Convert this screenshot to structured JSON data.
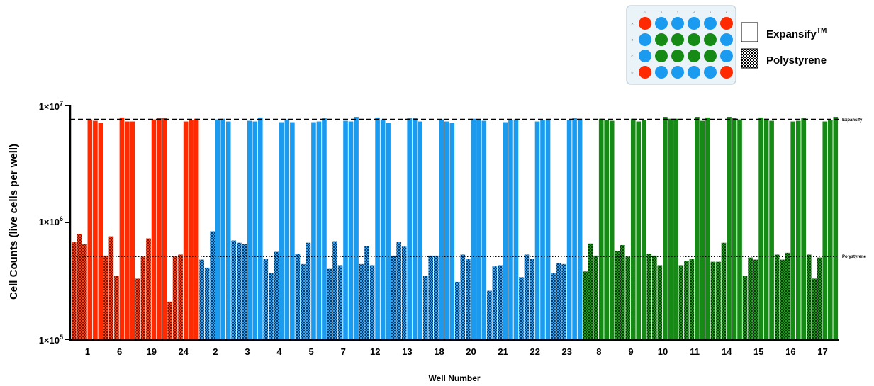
{
  "chart_data": {
    "type": "bar",
    "ylabel": "Cell Counts (live cells per well)",
    "xlabel": "Well Number",
    "y_scale": "log",
    "ylim": [
      100000,
      10000000
    ],
    "y_ticks": [
      {
        "value": 100000,
        "base": "1×10",
        "exp": "5"
      },
      {
        "value": 1000000,
        "base": "1×10",
        "exp": "6"
      },
      {
        "value": 10000000,
        "base": "1×10",
        "exp": "7"
      }
    ],
    "reference_lines": [
      {
        "label": "Expansify",
        "value": 7600000,
        "style": "dashed"
      },
      {
        "label": "Polystyrene",
        "value": 510000,
        "style": "dotted"
      }
    ],
    "legend": {
      "position": "top-right",
      "expansify_label": "Expansify",
      "expansify_superscript": "TM",
      "polystyrene_label": "Polystyrene",
      "plate": {
        "columns": [
          "1",
          "2",
          "3",
          "4",
          "5",
          "6"
        ],
        "rows": [
          "A",
          "B",
          "C",
          "D"
        ],
        "wells": [
          [
            "red",
            "blue",
            "blue",
            "blue",
            "blue",
            "red"
          ],
          [
            "blue",
            "green",
            "green",
            "green",
            "green",
            "blue"
          ],
          [
            "blue",
            "green",
            "green",
            "green",
            "green",
            "blue"
          ],
          [
            "red",
            "blue",
            "blue",
            "blue",
            "blue",
            "red"
          ]
        ]
      }
    },
    "colors": {
      "red": "#ff2a00",
      "blue": "#1a9bf0",
      "green": "#158a14"
    },
    "groups": [
      {
        "well": "1",
        "color": "red",
        "polystyrene": [
          680000,
          800000,
          650000
        ],
        "expansify": [
          7600000,
          7400000,
          7100000
        ]
      },
      {
        "well": "6",
        "color": "red",
        "polystyrene": [
          520000,
          760000,
          350000
        ],
        "expansify": [
          7900000,
          7300000,
          7300000
        ]
      },
      {
        "well": "19",
        "color": "red",
        "polystyrene": [
          330000,
          510000,
          730000
        ],
        "expansify": [
          7600000,
          7800000,
          7800000
        ]
      },
      {
        "well": "24",
        "color": "red",
        "polystyrene": [
          210000,
          510000,
          530000
        ],
        "expansify": [
          7300000,
          7500000,
          7700000
        ]
      },
      {
        "well": "2",
        "color": "blue",
        "polystyrene": [
          480000,
          410000,
          840000
        ],
        "expansify": [
          7600000,
          7700000,
          7300000
        ]
      },
      {
        "well": "3",
        "color": "blue",
        "polystyrene": [
          700000,
          670000,
          650000
        ],
        "expansify": [
          7400000,
          7300000,
          7900000
        ]
      },
      {
        "well": "4",
        "color": "blue",
        "polystyrene": [
          490000,
          370000,
          560000
        ],
        "expansify": [
          7200000,
          7600000,
          7200000
        ]
      },
      {
        "well": "5",
        "color": "blue",
        "polystyrene": [
          540000,
          440000,
          670000
        ],
        "expansify": [
          7200000,
          7300000,
          7800000
        ]
      },
      {
        "well": "7",
        "color": "blue",
        "polystyrene": [
          400000,
          690000,
          430000
        ],
        "expansify": [
          7400000,
          7300000,
          8000000
        ]
      },
      {
        "well": "12",
        "color": "blue",
        "polystyrene": [
          440000,
          630000,
          430000
        ],
        "expansify": [
          7900000,
          7600000,
          7100000
        ]
      },
      {
        "well": "13",
        "color": "blue",
        "polystyrene": [
          520000,
          680000,
          620000
        ],
        "expansify": [
          7800000,
          7800000,
          7300000
        ]
      },
      {
        "well": "18",
        "color": "blue",
        "polystyrene": [
          350000,
          520000,
          520000
        ],
        "expansify": [
          7600000,
          7300000,
          7100000
        ]
      },
      {
        "well": "20",
        "color": "blue",
        "polystyrene": [
          310000,
          530000,
          490000
        ],
        "expansify": [
          7700000,
          7600000,
          7400000
        ]
      },
      {
        "well": "21",
        "color": "blue",
        "polystyrene": [
          260000,
          420000,
          430000
        ],
        "expansify": [
          7200000,
          7500000,
          7600000
        ]
      },
      {
        "well": "22",
        "color": "blue",
        "polystyrene": [
          340000,
          530000,
          490000
        ],
        "expansify": [
          7300000,
          7500000,
          7600000
        ]
      },
      {
        "well": "23",
        "color": "blue",
        "polystyrene": [
          370000,
          450000,
          440000
        ],
        "expansify": [
          7500000,
          7800000,
          7700000
        ]
      },
      {
        "well": "8",
        "color": "green",
        "polystyrene": [
          380000,
          660000,
          520000
        ],
        "expansify": [
          7700000,
          7500000,
          7400000
        ]
      },
      {
        "well": "9",
        "color": "green",
        "polystyrene": [
          570000,
          640000,
          510000
        ],
        "expansify": [
          7700000,
          7300000,
          7500000
        ]
      },
      {
        "well": "10",
        "color": "green",
        "polystyrene": [
          540000,
          520000,
          430000
        ],
        "expansify": [
          8000000,
          7700000,
          7700000
        ]
      },
      {
        "well": "11",
        "color": "green",
        "polystyrene": [
          430000,
          470000,
          490000
        ],
        "expansify": [
          8000000,
          7400000,
          7900000
        ]
      },
      {
        "well": "14",
        "color": "green",
        "polystyrene": [
          460000,
          460000,
          670000
        ],
        "expansify": [
          8000000,
          7800000,
          7600000
        ]
      },
      {
        "well": "15",
        "color": "green",
        "polystyrene": [
          350000,
          500000,
          480000
        ],
        "expansify": [
          7900000,
          7700000,
          7400000
        ]
      },
      {
        "well": "16",
        "color": "green",
        "polystyrene": [
          530000,
          480000,
          550000
        ],
        "expansify": [
          7300000,
          7400000,
          7800000
        ]
      },
      {
        "well": "17",
        "color": "green",
        "polystyrene": [
          530000,
          330000,
          500000
        ],
        "expansify": [
          7300000,
          7500000,
          8000000
        ]
      }
    ]
  }
}
